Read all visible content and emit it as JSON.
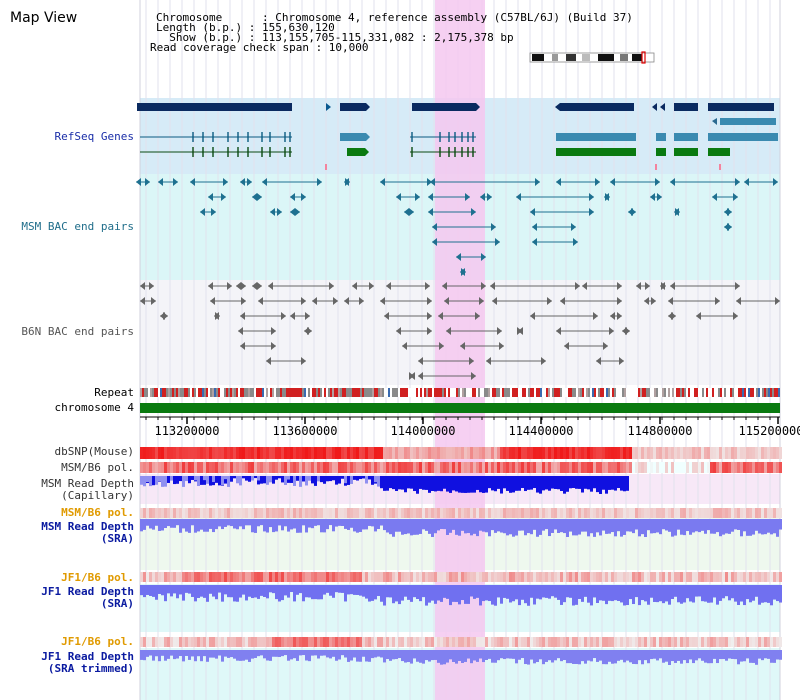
{
  "map_title": "Map View",
  "info": {
    "chromosome_line": "Chromosome      : Chromosome 4, reference assembly (C57BL/6J) (Build 37)",
    "length_line": "Length (b.p.) : 155,630,120",
    "show_line": "  Show (b.p.) : 113,155,705-115,331,082 : 2,175,378 bp",
    "span_line": "Read coverage check span : 10,000"
  },
  "tracks": {
    "refseq": "RefSeq Genes",
    "msm_bac": "MSM BAC end pairs",
    "b6n_bac": "B6N BAC end pairs",
    "repeat": "Repeat",
    "chromosome": "chromosome 4",
    "dbsnp": "dbSNP(Mouse)",
    "msm_b6_pol": "MSM/B6 pol.",
    "msm_depth_cap_1": "MSM Read Depth",
    "msm_depth_cap_2": "(Capillary)",
    "msm_b6_pol_2": "MSM/B6 pol.",
    "msm_depth_sra_1": "MSM Read Depth",
    "msm_depth_sra_2": "(SRA)",
    "jf1_b6_pol": "JF1/B6 pol.",
    "jf1_depth_sra_1": "JF1 Read Depth",
    "jf1_depth_sra_2": "(SRA)",
    "jf1_b6_pol_2": "JF1/B6 pol.",
    "jf1_depth_trim_1": "JF1 Read Depth",
    "jf1_depth_trim_2": "(SRA trimmed)"
  },
  "ruler": {
    "ticks": [
      "113200000",
      "113600000",
      "114000000",
      "114400000",
      "114800000",
      "115200000"
    ]
  },
  "colors": {
    "selection": "#f5c8f0",
    "refseq_band": "#d8ecf8",
    "bac_band": "#dcf6f8",
    "gene_navy": "#0a2a60",
    "gene_steel": "#3a8ab0",
    "gene_green": "#0a6a10",
    "chrom_green": "#0a7a10",
    "snp_red": "#ee2020",
    "depth_blue": "#7070f0",
    "depth_dark": "#1010e0"
  }
}
